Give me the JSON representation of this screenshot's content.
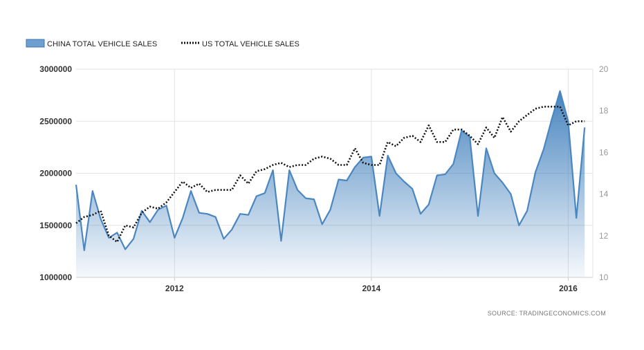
{
  "chart_data": {
    "type": "line",
    "source": "SOURCE: TRADINGECONOMICS.COM",
    "grid": true,
    "legend_position": "top-left",
    "x_ticks": [
      "2012",
      "2014",
      "2016"
    ],
    "x_range": [
      2011.0,
      2016.25
    ],
    "y_left": {
      "range": [
        1000000,
        3000000
      ],
      "ticks": [
        "1000000",
        "1500000",
        "2000000",
        "2500000",
        "3000000"
      ]
    },
    "y_right": {
      "range": [
        10,
        20
      ],
      "ticks": [
        "10",
        "12",
        "14",
        "16",
        "18",
        "20"
      ]
    },
    "series": [
      {
        "name": "CHINA TOTAL VEHICLE SALES",
        "axis": "left",
        "style": "area",
        "color": "#4a86c0",
        "x": [
          2011.0,
          2011.083,
          2011.167,
          2011.25,
          2011.333,
          2011.417,
          2011.5,
          2011.583,
          2011.667,
          2011.75,
          2011.833,
          2011.917,
          2012.0,
          2012.083,
          2012.167,
          2012.25,
          2012.333,
          2012.417,
          2012.5,
          2012.583,
          2012.667,
          2012.75,
          2012.833,
          2012.917,
          2013.0,
          2013.083,
          2013.167,
          2013.25,
          2013.333,
          2013.417,
          2013.5,
          2013.583,
          2013.667,
          2013.75,
          2013.833,
          2013.917,
          2014.0,
          2014.083,
          2014.167,
          2014.25,
          2014.333,
          2014.417,
          2014.5,
          2014.583,
          2014.667,
          2014.75,
          2014.833,
          2014.917,
          2015.0,
          2015.083,
          2015.167,
          2015.25,
          2015.333,
          2015.417,
          2015.5,
          2015.583,
          2015.667,
          2015.75,
          2015.833,
          2015.917,
          2016.0,
          2016.083,
          2016.167
        ],
        "y": [
          1890000,
          1260000,
          1830000,
          1560000,
          1380000,
          1430000,
          1270000,
          1370000,
          1640000,
          1530000,
          1650000,
          1690000,
          1380000,
          1570000,
          1830000,
          1620000,
          1610000,
          1580000,
          1370000,
          1460000,
          1610000,
          1600000,
          1780000,
          1810000,
          2030000,
          1350000,
          2030000,
          1840000,
          1760000,
          1750000,
          1510000,
          1650000,
          1940000,
          1930000,
          2060000,
          2150000,
          2160000,
          1590000,
          2170000,
          2000000,
          1920000,
          1850000,
          1610000,
          1700000,
          1980000,
          1990000,
          2090000,
          2410000,
          2350000,
          1590000,
          2240000,
          2000000,
          1910000,
          1800000,
          1500000,
          1640000,
          2010000,
          2230000,
          2520000,
          2790000,
          2500000,
          1570000,
          2440000
        ]
      },
      {
        "name": "US TOTAL VEHICLE SALES",
        "axis": "right",
        "style": "dotted-line",
        "color": "#111111",
        "x": [
          2011.0,
          2011.083,
          2011.167,
          2011.25,
          2011.333,
          2011.417,
          2011.5,
          2011.583,
          2011.667,
          2011.75,
          2011.833,
          2011.917,
          2012.0,
          2012.083,
          2012.167,
          2012.25,
          2012.333,
          2012.417,
          2012.5,
          2012.583,
          2012.667,
          2012.75,
          2012.833,
          2012.917,
          2013.0,
          2013.083,
          2013.167,
          2013.25,
          2013.333,
          2013.417,
          2013.5,
          2013.583,
          2013.667,
          2013.75,
          2013.833,
          2013.917,
          2014.0,
          2014.083,
          2014.167,
          2014.25,
          2014.333,
          2014.417,
          2014.5,
          2014.583,
          2014.667,
          2014.75,
          2014.833,
          2014.917,
          2015.0,
          2015.083,
          2015.167,
          2015.25,
          2015.333,
          2015.417,
          2015.5,
          2015.583,
          2015.667,
          2015.75,
          2015.833,
          2015.917,
          2016.0,
          2016.083,
          2016.167
        ],
        "y": [
          12.6,
          12.9,
          13.0,
          13.2,
          12.0,
          11.7,
          12.5,
          12.4,
          13.1,
          13.4,
          13.3,
          13.6,
          14.1,
          14.6,
          14.3,
          14.5,
          14.1,
          14.2,
          14.2,
          14.2,
          14.9,
          14.5,
          15.1,
          15.2,
          15.4,
          15.5,
          15.3,
          15.4,
          15.4,
          15.7,
          15.8,
          15.7,
          15.4,
          15.4,
          16.2,
          15.5,
          15.4,
          15.4,
          16.5,
          16.3,
          16.7,
          16.8,
          16.5,
          17.3,
          16.5,
          16.5,
          17.1,
          17.1,
          16.8,
          16.4,
          17.2,
          16.7,
          17.7,
          17.0,
          17.5,
          17.8,
          18.1,
          18.2,
          18.2,
          18.2,
          17.3,
          17.5,
          17.5
        ]
      }
    ]
  }
}
